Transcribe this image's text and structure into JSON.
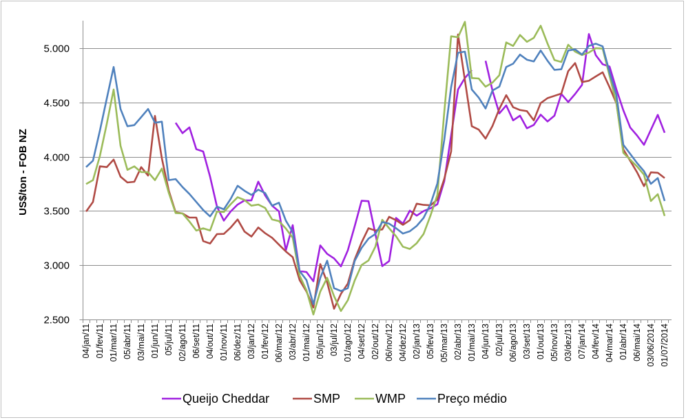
{
  "chart_data": {
    "type": "line",
    "title": "",
    "xlabel": "",
    "ylabel": "US$/ton - FOB NZ",
    "ylim": [
      2500,
      5250
    ],
    "yticks": [
      2500,
      3000,
      3500,
      4000,
      4500,
      5000
    ],
    "ytick_labels": [
      "2.500",
      "3.000",
      "3.500",
      "4.000",
      "4.500",
      "5.000"
    ],
    "grid": true,
    "legend_position": "bottom",
    "x_tick_labels": [
      "04/jan/11",
      "01/fev/11",
      "01/mar/11",
      "05/abr/11",
      "03/mai/11",
      "01/jun/11",
      "05/jul/11",
      "02/ago/11",
      "06/set/11",
      "04/out/11",
      "01/nov/11",
      "06/dez/11",
      "03/jan/12",
      "01/fev/12",
      "06/mar/12",
      "03/abr/12",
      "01/mai/12",
      "05/jun/12",
      "03/jul/12",
      "01/ago/12",
      "04/set/12",
      "02/out/12",
      "06/nov/12",
      "04/dez/12",
      "02/jan/13",
      "05/fev/13",
      "05/mar/13",
      "02/abr/13",
      "01/mai/13",
      "04/jun/13",
      "02/jul/13",
      "06/ago/13",
      "03/set/13",
      "01/out/13",
      "05/nov/13",
      "03/dez/13",
      "07/jan/14",
      "04/fev/14",
      "04/mar/14",
      "01/abr/14",
      "06/mai/14",
      "03/06/2014",
      "01/07/2014"
    ],
    "points_per_label": 2,
    "series": [
      {
        "name": "Queijo Cheddar",
        "color": "#a020e0",
        "values": [
          null,
          null,
          null,
          null,
          null,
          null,
          null,
          null,
          null,
          null,
          null,
          null,
          null,
          4313,
          4217,
          4270,
          4069,
          4048,
          3816,
          3540,
          3411,
          3496,
          3559,
          3597,
          3597,
          3770,
          3643,
          3549,
          3496,
          3137,
          3369,
          2947,
          2937,
          2852,
          3183,
          3105,
          3063,
          2989,
          3137,
          3360,
          3594,
          3590,
          3288,
          2992,
          3038,
          3436,
          3383,
          3503,
          3457,
          3499,
          3524,
          3562,
          3774,
          4197,
          4619,
          4725,
          4799,
          null,
          4884,
          4610,
          4399,
          4473,
          4335,
          4378,
          4262,
          4293,
          4388,
          4325,
          4378,
          4578,
          4504,
          4578,
          4662,
          5131,
          4936,
          4852,
          4831,
          4619,
          4428,
          4269,
          4195,
          4110,
          4248,
          4386,
          4221
        ]
      },
      {
        "name": "SMP",
        "color": "#b04a44",
        "values": [
          3494,
          3583,
          3911,
          3904,
          3974,
          3816,
          3763,
          3769,
          3904,
          3826,
          4376,
          3985,
          3689,
          3488,
          3477,
          3439,
          3439,
          3223,
          3200,
          3287,
          3289,
          3348,
          3422,
          3310,
          3264,
          3348,
          3295,
          3253,
          3190,
          3127,
          3074,
          2863,
          2757,
          2610,
          3011,
          2842,
          2599,
          2736,
          2831,
          3053,
          3210,
          3341,
          3320,
          3330,
          3446,
          3415,
          3372,
          3415,
          3567,
          3556,
          3552,
          3605,
          3795,
          4049,
          5127,
          4704,
          4281,
          4250,
          4167,
          4283,
          4441,
          4567,
          4456,
          4430,
          4420,
          4335,
          4494,
          4540,
          4561,
          4582,
          4789,
          4863,
          4688,
          4700,
          4740,
          4778,
          4640,
          4492,
          4068,
          3962,
          3856,
          3729,
          3856,
          3852,
          3803
        ]
      },
      {
        "name": "WMP",
        "color": "#9bbb59",
        "values": [
          3748,
          3784,
          4006,
          4302,
          4619,
          4101,
          3879,
          3911,
          3858,
          3858,
          3784,
          3890,
          3668,
          3481,
          3477,
          3403,
          3319,
          3340,
          3320,
          3495,
          3490,
          3563,
          3627,
          3601,
          3549,
          3559,
          3527,
          3422,
          3407,
          3338,
          3253,
          2905,
          2768,
          2546,
          2757,
          2884,
          2715,
          2578,
          2677,
          2860,
          3002,
          3044,
          3171,
          3419,
          3341,
          3267,
          3171,
          3150,
          3203,
          3288,
          3457,
          3647,
          4408,
          5110,
          5101,
          5243,
          4725,
          4721,
          4645,
          4683,
          4751,
          5053,
          5021,
          5122,
          5059,
          5095,
          5207,
          5042,
          4890,
          4873,
          5032,
          4968,
          4937,
          4960,
          5000,
          4996,
          4746,
          4492,
          4036,
          3973,
          3909,
          3835,
          3592,
          3655,
          3454
        ]
      },
      {
        "name": "Preço médio",
        "color": "#4f81bd",
        "values": [
          3904,
          3964,
          4239,
          4535,
          4827,
          4440,
          4281,
          4291,
          4365,
          4440,
          4313,
          4323,
          3784,
          3794,
          3720,
          3657,
          3583,
          3509,
          3450,
          3540,
          3515,
          3612,
          3732,
          3686,
          3648,
          3696,
          3665,
          3549,
          3576,
          3411,
          3306,
          2947,
          2863,
          2641,
          2884,
          3042,
          2789,
          2762,
          2789,
          3040,
          3160,
          3245,
          3288,
          3398,
          3383,
          3341,
          3292,
          3313,
          3362,
          3436,
          3562,
          3753,
          4154,
          4641,
          4958,
          4968,
          4619,
          4545,
          4445,
          4610,
          4646,
          4827,
          4857,
          4941,
          4894,
          4878,
          4979,
          4884,
          4800,
          4806,
          4979,
          4989,
          4941,
          5021,
          5042,
          5017,
          4778,
          4566,
          4110,
          4026,
          3941,
          3867,
          3750,
          3803,
          3592
        ]
      }
    ]
  }
}
